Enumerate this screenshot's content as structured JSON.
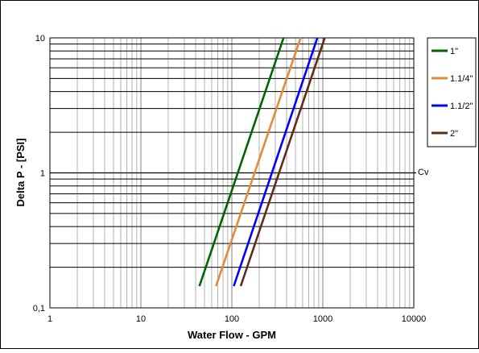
{
  "chart_data": {
    "type": "line",
    "xlabel": "Water Flow - GPM",
    "ylabel": "Delta P - [PSI]",
    "xscale": "log",
    "yscale": "log",
    "xlim": [
      1,
      10000
    ],
    "ylim": [
      0.1,
      10
    ],
    "grid": true,
    "x_ticks": [
      "1",
      "10",
      "100",
      "1000",
      "10000"
    ],
    "y_ticks": [
      "0,1",
      "1",
      "10"
    ],
    "legend_position": "right",
    "annotation": {
      "text": "Cv",
      "y": 1
    },
    "series": [
      {
        "name": "1\"",
        "color": "#006400",
        "x": [
          44,
          370
        ],
        "y": [
          0.145,
          10
        ]
      },
      {
        "name": "1.1/4\"",
        "color": "#e08a3c",
        "x": [
          67,
          570
        ],
        "y": [
          0.145,
          10
        ]
      },
      {
        "name": "1.1/2\"",
        "color": "#0000ff",
        "x": [
          105,
          870
        ],
        "y": [
          0.145,
          10
        ]
      },
      {
        "name": "2\"",
        "color": "#5c2e16",
        "x": [
          125,
          1050
        ],
        "y": [
          0.145,
          10
        ]
      }
    ]
  }
}
